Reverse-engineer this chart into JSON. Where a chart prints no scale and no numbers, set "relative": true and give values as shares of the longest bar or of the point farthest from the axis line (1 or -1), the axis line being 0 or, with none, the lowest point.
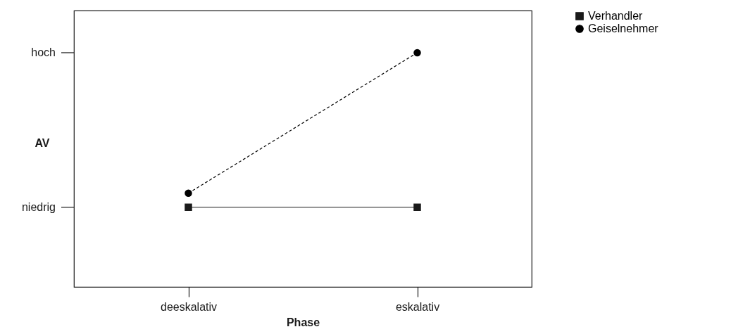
{
  "chart_data": {
    "type": "line",
    "xlabel": "Phase",
    "ylabel": "AV",
    "categories": [
      "deeskalativ",
      "eskalativ"
    ],
    "series": [
      {
        "name": "Verhandler",
        "color": "#1a1a1a",
        "values": [
          0.34,
          0.34
        ],
        "marker": "square",
        "line_style": "solid"
      },
      {
        "name": "Geiselnehmer",
        "color": "#000000",
        "values": [
          0.4,
          1
        ],
        "marker": "circle",
        "line_style": "dashed"
      }
    ],
    "relative": true,
    "annotations": [
      "niedrig",
      "hoch"
    ],
    "grid": false,
    "legend": "right"
  }
}
